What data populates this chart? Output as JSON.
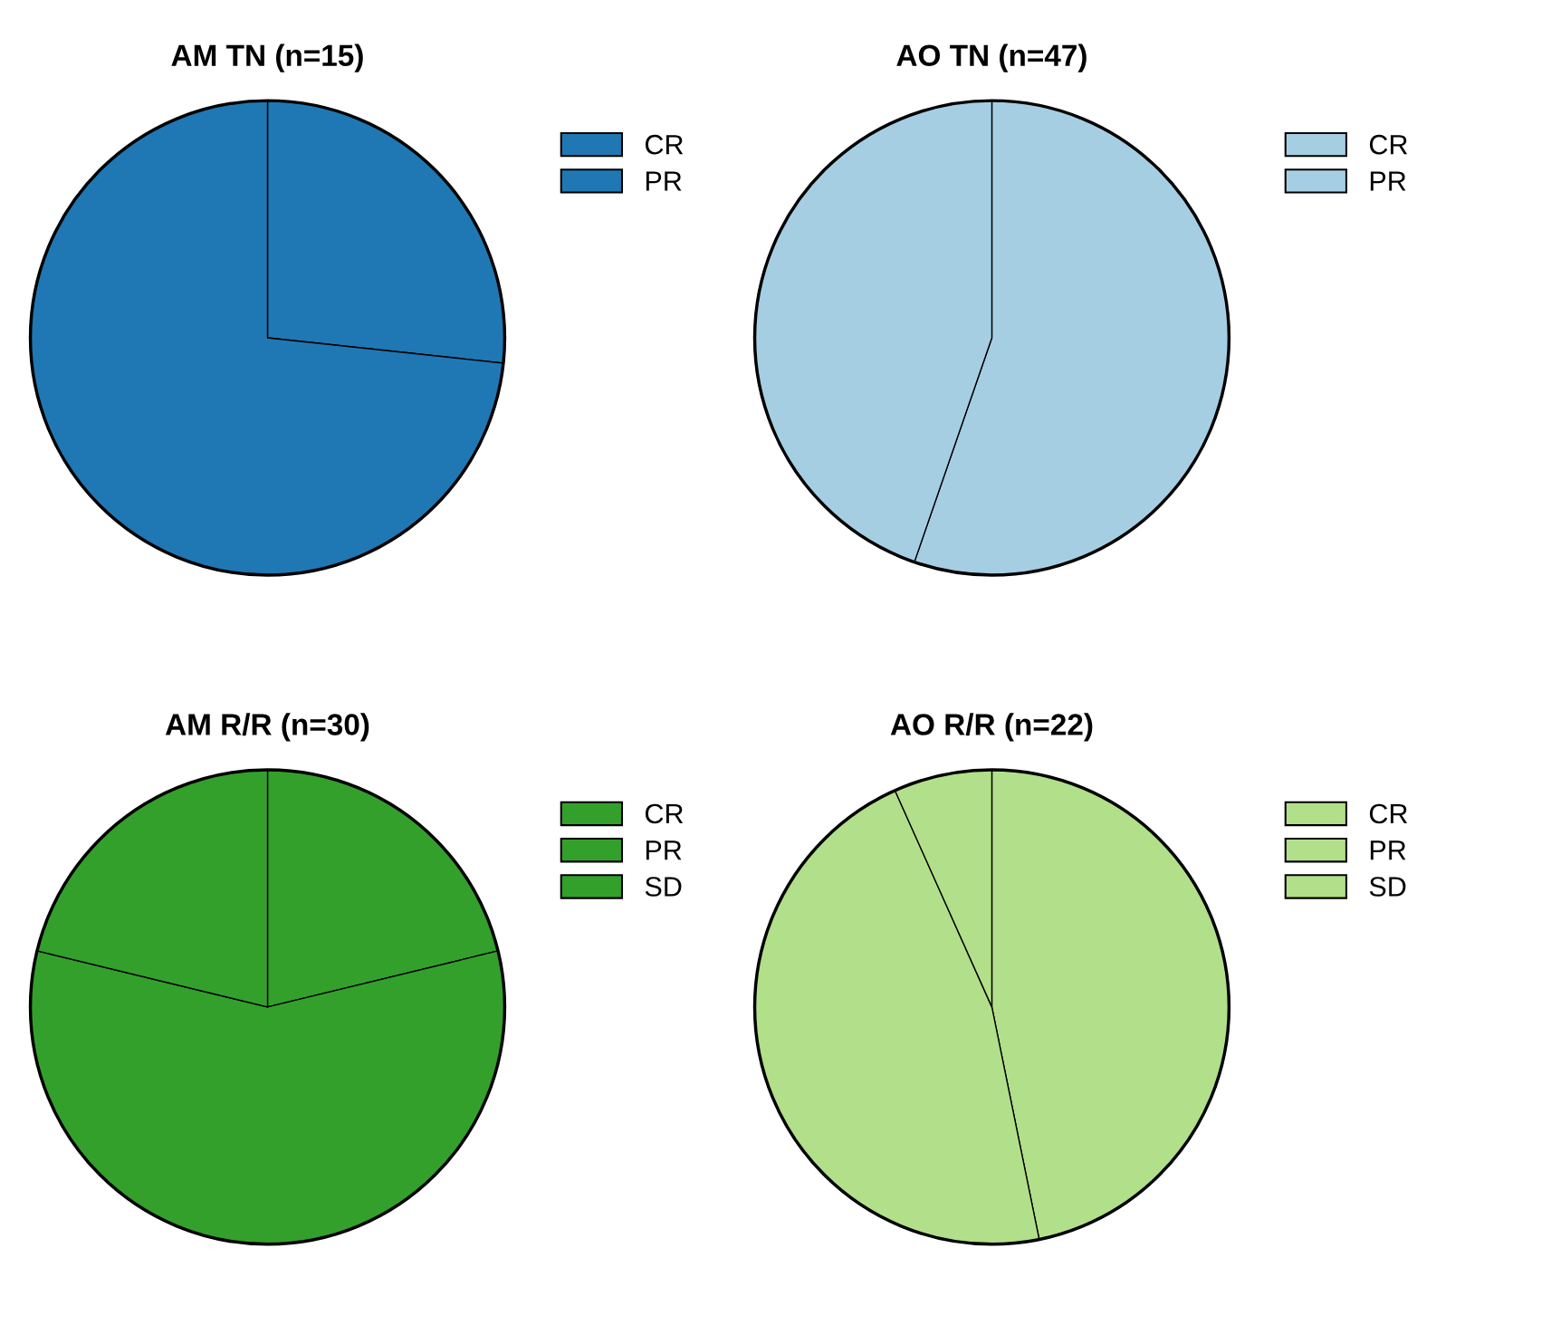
{
  "chart_data": [
    {
      "type": "pie",
      "title": "AM TN (n=15)",
      "categories": [
        "CR",
        "PR"
      ],
      "values": [
        26.7,
        73.3
      ],
      "colors": [
        "#1f78b4",
        "#1f78b4"
      ],
      "legend": "right"
    },
    {
      "type": "pie",
      "title": "AO TN (n=47)",
      "categories": [
        "CR",
        "PR"
      ],
      "values": [
        55.3,
        44.7
      ],
      "colors": [
        "#a6cee3",
        "#a6cee3"
      ],
      "legend": "right"
    },
    {
      "type": "pie",
      "title": "AM R/R (n=30)",
      "categories": [
        "CR",
        "PR",
        "SD"
      ],
      "values": [
        21.2,
        57.6,
        21.2
      ],
      "colors": [
        "#33a02c",
        "#33a02c",
        "#33a02c"
      ],
      "legend": "right"
    },
    {
      "type": "pie",
      "title": "AO R/R (n=22)",
      "categories": [
        "CR",
        "PR",
        "SD"
      ],
      "values": [
        46.8,
        46.5,
        6.7
      ],
      "colors": [
        "#b2df8a",
        "#b2df8a",
        "#b2df8a"
      ],
      "legend": "right"
    }
  ]
}
